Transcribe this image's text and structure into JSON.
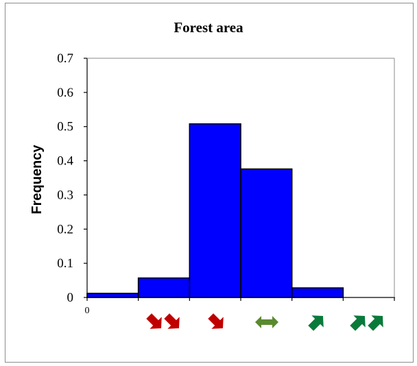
{
  "chart_data": {
    "type": "bar",
    "title": "Forest area",
    "ylabel": "Frequency",
    "xlabel": "",
    "ylim": [
      0,
      0.7
    ],
    "y_ticks": [
      "0",
      "0.1",
      "0.2",
      "0.3",
      "0.4",
      "0.5",
      "0.6",
      "0.7"
    ],
    "x_tick_label": "0",
    "categories": [
      "strong decrease",
      "decrease",
      "slight decrease",
      "stable",
      "increase",
      "strong increase"
    ],
    "values": [
      0.012,
      0.057,
      0.508,
      0.376,
      0.028,
      0.0
    ],
    "bar_color": "#0000ff",
    "grid": false,
    "category_icons": [
      {
        "icon": "double-down-arrow-icon",
        "color": "#c00000"
      },
      {
        "icon": "double-down-arrow-icon",
        "color": "#c00000"
      },
      {
        "icon": "down-arrow-icon",
        "color": "#c00000"
      },
      {
        "icon": "left-right-arrow-icon",
        "color": "#5a8a2e"
      },
      {
        "icon": "up-arrow-icon",
        "color": "#0a7a3a"
      },
      {
        "icon": "double-up-arrow-icon",
        "color": "#0a7a3a"
      }
    ]
  }
}
